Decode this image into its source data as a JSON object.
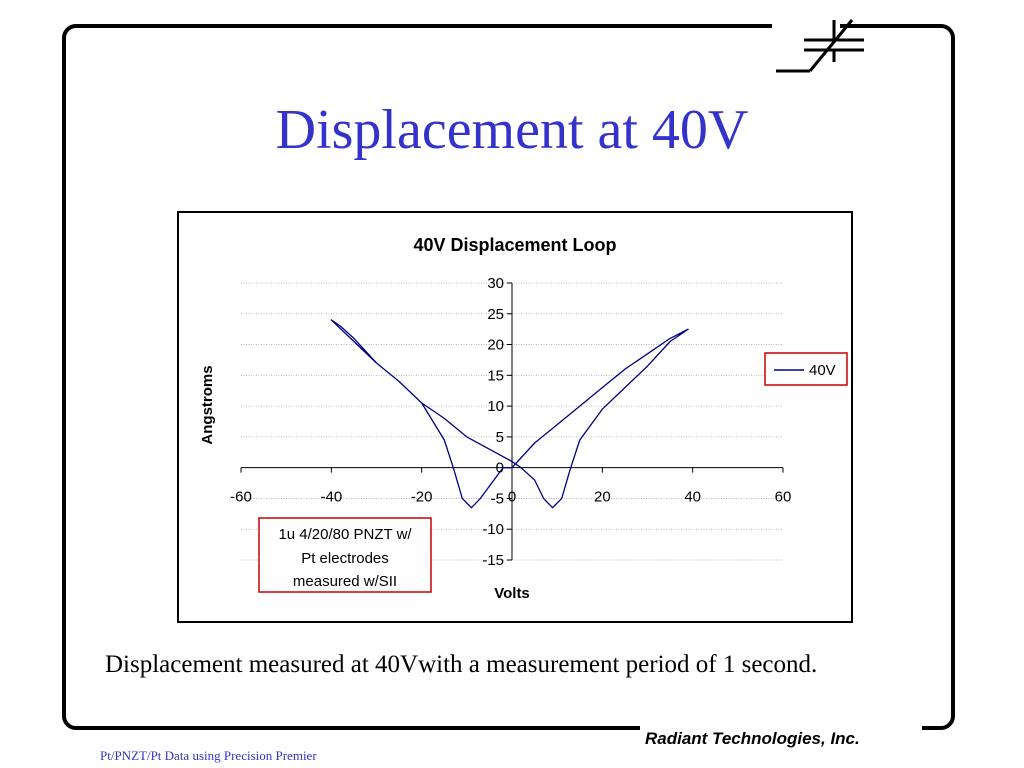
{
  "slide": {
    "title": "Displacement at 40V",
    "caption": "Displacement measured at 40Vwith a measurement period of 1 second.",
    "company": "Radiant Technologies, Inc.",
    "footer": "Pt/PNZT/Pt  Data using Precision Premier"
  },
  "colors": {
    "title": "#3333cc",
    "series": "#000080",
    "legend_border": "#cc0000",
    "annotation_border": "#cc0000",
    "footer": "#3333cc"
  },
  "chart_data": {
    "type": "line",
    "title": "40V Displacement Loop",
    "xlabel": "Volts",
    "ylabel": "Angstroms",
    "xlim": [
      -60,
      60
    ],
    "ylim": [
      -15,
      30
    ],
    "x_ticks": [
      "-60",
      "-40",
      "-20",
      "0",
      "20",
      "40",
      "60"
    ],
    "y_ticks": [
      "30",
      "25",
      "20",
      "15",
      "10",
      "5",
      "0",
      "-5",
      "-10",
      "-15"
    ],
    "grid": "horizontal",
    "legend": {
      "position": "right",
      "entries": [
        "40V"
      ]
    },
    "annotation": [
      "1u 4/20/80 PNZT w/",
      "Pt electrodes",
      "measured w/SII"
    ],
    "series": [
      {
        "name": "40V",
        "x": [
          0,
          5,
          10,
          15,
          20,
          25,
          30,
          35,
          39,
          35,
          30,
          25,
          20,
          15,
          13,
          11,
          9,
          7,
          5,
          2,
          0,
          -5,
          -10,
          -15,
          -20,
          -25,
          -30,
          -35,
          -38,
          -40,
          -35,
          -30,
          -25,
          -20,
          -15,
          -13,
          -11,
          -9,
          -7,
          -5,
          -2,
          0
        ],
        "values": [
          0,
          4,
          7,
          10,
          13,
          16,
          18.5,
          21,
          22.5,
          20.5,
          16.5,
          13,
          9.5,
          4.5,
          0,
          -5,
          -6.5,
          -5,
          -2,
          0,
          1,
          3,
          5,
          8,
          10.5,
          14,
          17,
          21,
          23,
          24,
          20.5,
          17,
          14,
          10.5,
          4.5,
          0,
          -5,
          -6.5,
          -5,
          -3,
          0,
          0
        ]
      }
    ]
  }
}
